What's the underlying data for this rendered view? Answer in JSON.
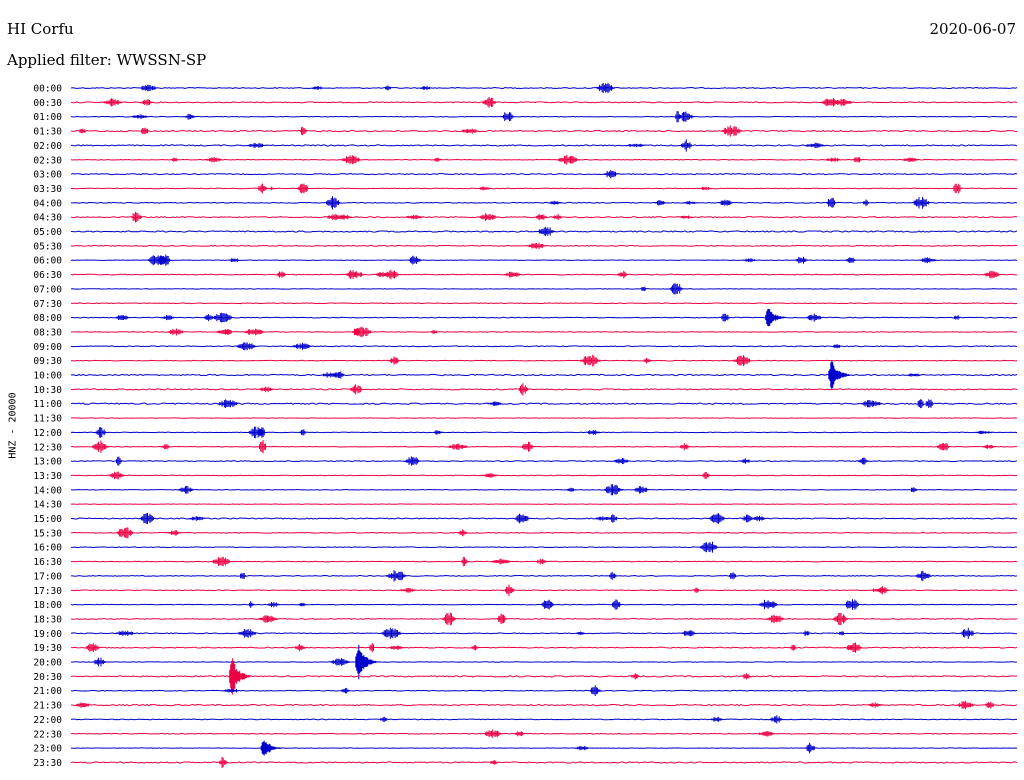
{
  "header": {
    "station": "HI Corfu",
    "date": "2020-06-07",
    "filter_label": "Applied filter: WWSSN-SP"
  },
  "chart_data": {
    "type": "line",
    "title": "HI Corfu",
    "ylabel": "HNZ - 20000",
    "row_labels": [
      "00:00",
      "00:30",
      "01:00",
      "01:30",
      "02:00",
      "02:30",
      "03:00",
      "03:30",
      "04:00",
      "04:30",
      "05:00",
      "05:30",
      "06:00",
      "06:30",
      "07:00",
      "07:30",
      "08:00",
      "08:30",
      "09:00",
      "09:30",
      "10:00",
      "10:30",
      "11:00",
      "11:30",
      "12:00",
      "12:30",
      "13:00",
      "13:30",
      "14:00",
      "14:30",
      "15:00",
      "15:30",
      "16:00",
      "16:30",
      "17:00",
      "17:30",
      "18:00",
      "18:30",
      "19:00",
      "19:30",
      "20:00",
      "20:30",
      "21:00",
      "21:30",
      "22:00",
      "22:30",
      "23:00",
      "23:30"
    ],
    "series_colors": [
      "#0000cc",
      "#ee0044"
    ],
    "notes_events": [
      {
        "row": "20:30",
        "minute": 5.0,
        "amp": 1.0
      },
      {
        "row": "20:00",
        "minute": 9.0,
        "amp": 0.9
      },
      {
        "row": "10:00",
        "minute": 24.0,
        "amp": 0.8
      },
      {
        "row": "08:00",
        "minute": 22.0,
        "amp": 0.5
      },
      {
        "row": "23:00",
        "minute": 6.0,
        "amp": 0.5
      }
    ]
  }
}
